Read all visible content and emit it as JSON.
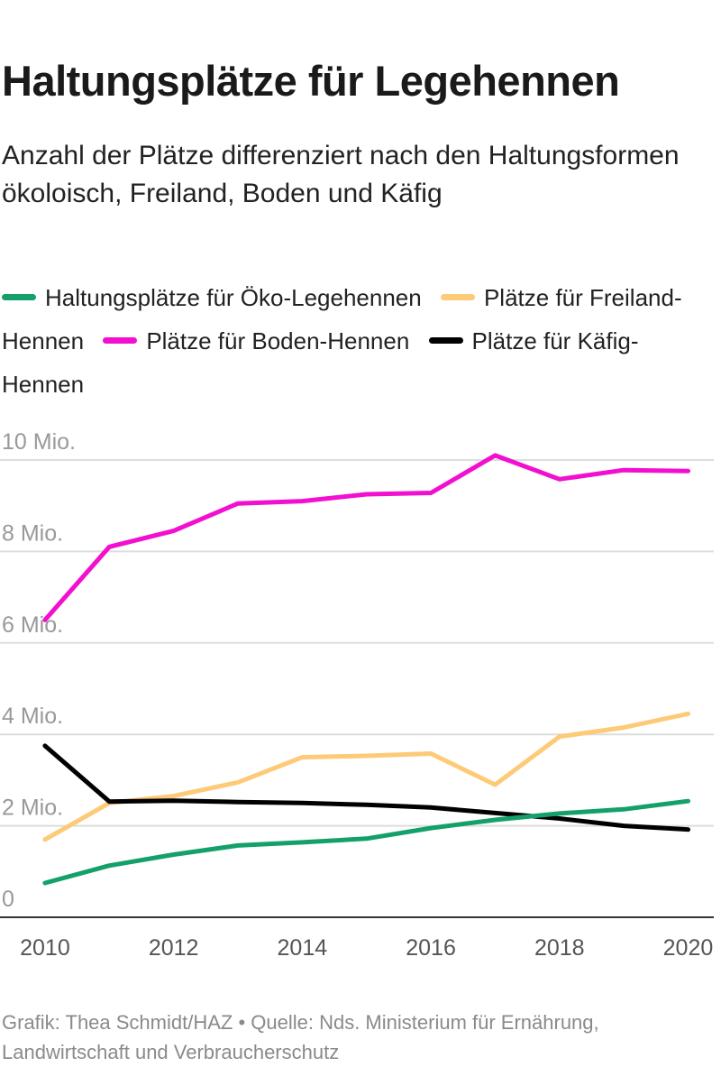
{
  "title": "Haltungsplätze für Legehennen",
  "subtitle": "Anzahl der Plätze differenziert nach den Haltungsformen ökoloisch, Freiland, Boden und Käfig",
  "legend": [
    {
      "label": "Haltungsplätze für Öko-Legehennen",
      "color": "#14a06a"
    },
    {
      "label": "Plätze für Freiland-Hennen",
      "color": "#fdca78"
    },
    {
      "label": "Plätze für Boden-Hennen",
      "color": "#f20fcf"
    },
    {
      "label": "Plätze für Käfig-Hennen",
      "color": "#000000"
    }
  ],
  "footer": "Grafik: Thea Schmidt/HAZ • Quelle: Nds. Ministerium für Ernährung, Landwirtschaft und Verbraucherschutz",
  "chart_data": {
    "type": "line",
    "x": [
      2010,
      2011,
      2012,
      2013,
      2014,
      2015,
      2016,
      2017,
      2018,
      2019,
      2020
    ],
    "x_ticks": [
      "2010",
      "2012",
      "2014",
      "2016",
      "2018",
      "2020"
    ],
    "x_tick_values": [
      2010,
      2012,
      2014,
      2016,
      2018,
      2020
    ],
    "y_ticks": [
      "0",
      "2 Mio.",
      "4 Mio.",
      "6 Mio.",
      "8 Mio.",
      "10 Mio."
    ],
    "y_tick_values": [
      0,
      2000000,
      4000000,
      6000000,
      8000000,
      10000000
    ],
    "ylim": [
      0,
      10000000
    ],
    "xlim": [
      2009.3,
      2020.4
    ],
    "grid": true,
    "legend_position": "top",
    "series": [
      {
        "name": "Plätze für Boden-Hennen",
        "color": "#f20fcf",
        "values": [
          6500000,
          8100000,
          8450000,
          9050000,
          9100000,
          9250000,
          9280000,
          10100000,
          9580000,
          9780000,
          9760000
        ]
      },
      {
        "name": "Plätze für Freiland-Hennen",
        "color": "#fdca78",
        "values": [
          1700000,
          2500000,
          2650000,
          2950000,
          3500000,
          3530000,
          3580000,
          2900000,
          3950000,
          4150000,
          4450000
        ]
      },
      {
        "name": "Plätze für Käfig-Hennen",
        "color": "#000000",
        "values": [
          3750000,
          2530000,
          2550000,
          2520000,
          2500000,
          2460000,
          2400000,
          2280000,
          2160000,
          2000000,
          1920000
        ]
      },
      {
        "name": "Haltungsplätze für Öko-Legehennen",
        "color": "#14a06a",
        "values": [
          750000,
          1130000,
          1370000,
          1570000,
          1640000,
          1720000,
          1950000,
          2130000,
          2270000,
          2360000,
          2540000
        ]
      }
    ]
  }
}
